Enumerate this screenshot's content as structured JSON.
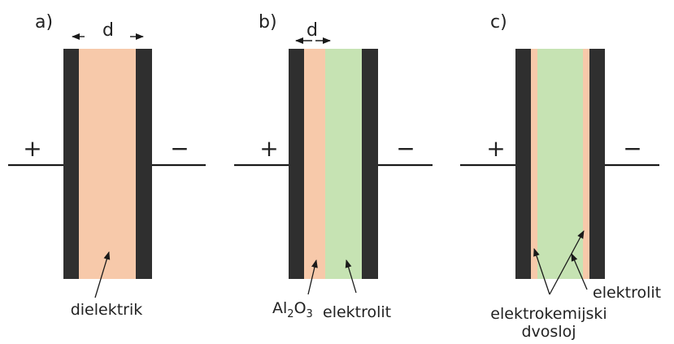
{
  "colors": {
    "plate": "#2f2f2f",
    "dielectric": "#f7c9aa",
    "electrolyte": "#c6e3b3",
    "line": "#1a1a1a",
    "text": "#222222"
  },
  "panels": [
    {
      "letter": "a)",
      "plus": "+",
      "minus": "−",
      "dimension": "d",
      "label": "dielektrik"
    },
    {
      "letter": "b)",
      "plus": "+",
      "minus": "−",
      "dimension": "d",
      "oxide_label": {
        "main": "Al",
        "sub": "2",
        "rest": "O",
        "sub2": "3"
      },
      "electrolyte_label": "elektrolit"
    },
    {
      "letter": "c)",
      "plus": "+",
      "minus": "−",
      "electrolyte_label": "elektrolit",
      "double_layer_label_1": "elektrokemijski",
      "double_layer_label_2": "dvosloj"
    }
  ]
}
